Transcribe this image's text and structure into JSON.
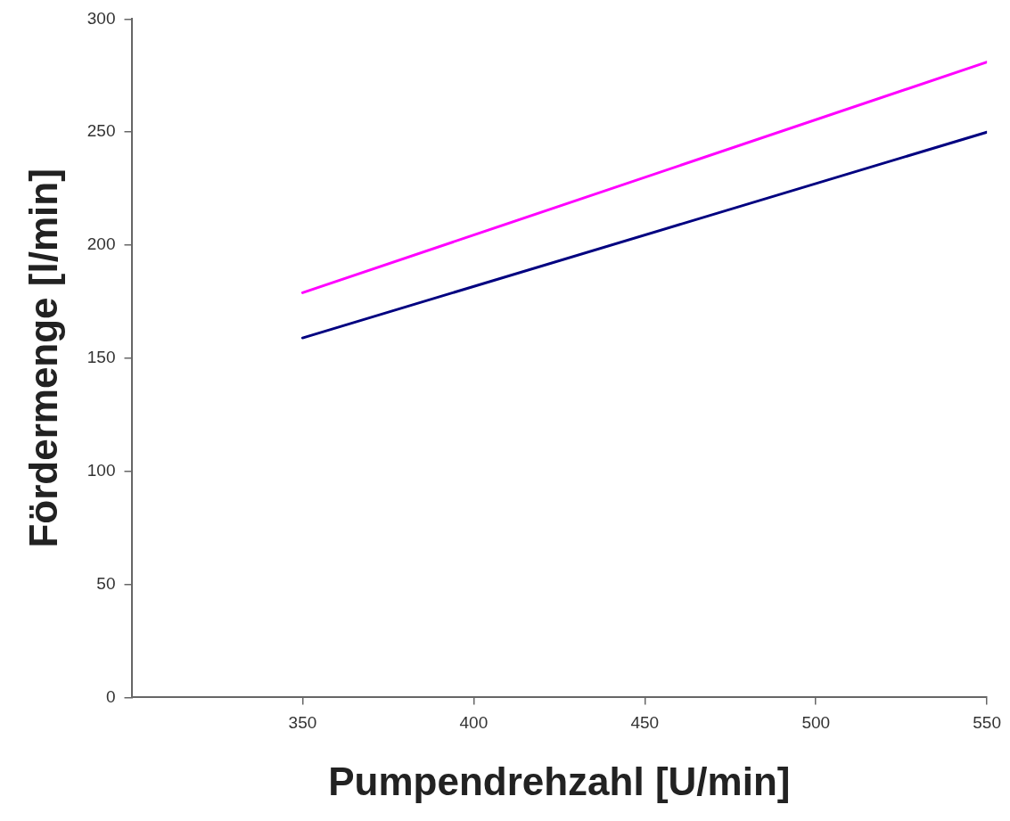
{
  "chart_data": {
    "type": "line",
    "xlabel": "Pumpendrehzahl [U/min]",
    "ylabel": "Fördermenge [l/min]",
    "x": [
      350,
      550
    ],
    "series": [
      {
        "color": "#000080",
        "values": [
          159,
          250
        ]
      },
      {
        "color": "#ff00ff",
        "values": [
          179,
          281
        ]
      }
    ],
    "xlim": [
      300,
      550
    ],
    "xticks": [
      350,
      400,
      450,
      500,
      550
    ],
    "ylim": [
      0,
      300
    ],
    "yticks": [
      0,
      50,
      100,
      150,
      200,
      250,
      300
    ],
    "grid": false,
    "legend": false,
    "marker": "none",
    "line_style": "solid"
  }
}
